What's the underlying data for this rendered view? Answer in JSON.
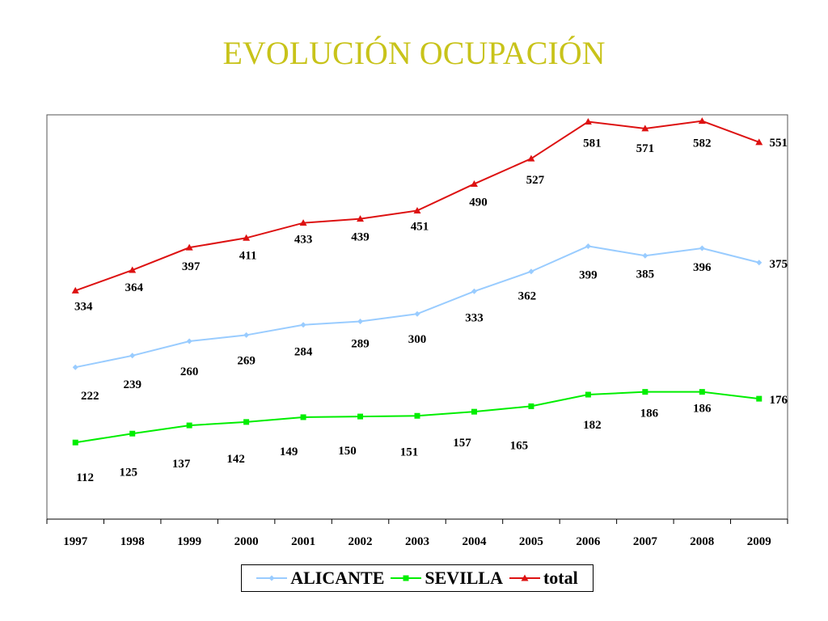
{
  "title": "EVOLUCIÓN OCUPACIÓN",
  "chart_data": {
    "type": "line",
    "title": "EVOLUCIÓN OCUPACIÓN",
    "xlabel": "",
    "ylabel": "",
    "ylim": [
      0,
      600
    ],
    "grid": false,
    "legend_position": "bottom",
    "categories": [
      "1997",
      "1998",
      "1999",
      "2000",
      "2001",
      "2002",
      "2003",
      "2004",
      "2005",
      "2006",
      "2007",
      "2008",
      "2009"
    ],
    "series": [
      {
        "name": "ALICANTE",
        "color": "#99ccff",
        "marker": "diamond",
        "values": [
          222,
          239,
          260,
          269,
          284,
          289,
          300,
          333,
          362,
          399,
          385,
          396,
          375
        ]
      },
      {
        "name": "SEVILLA",
        "color": "#00ee00",
        "marker": "square",
        "values": [
          112,
          125,
          137,
          142,
          149,
          150,
          151,
          157,
          165,
          182,
          186,
          186,
          176
        ]
      },
      {
        "name": "total",
        "color": "#dd1111",
        "marker": "triangle",
        "values": [
          334,
          364,
          397,
          411,
          433,
          439,
          451,
          490,
          527,
          581,
          571,
          582,
          551
        ]
      }
    ]
  }
}
